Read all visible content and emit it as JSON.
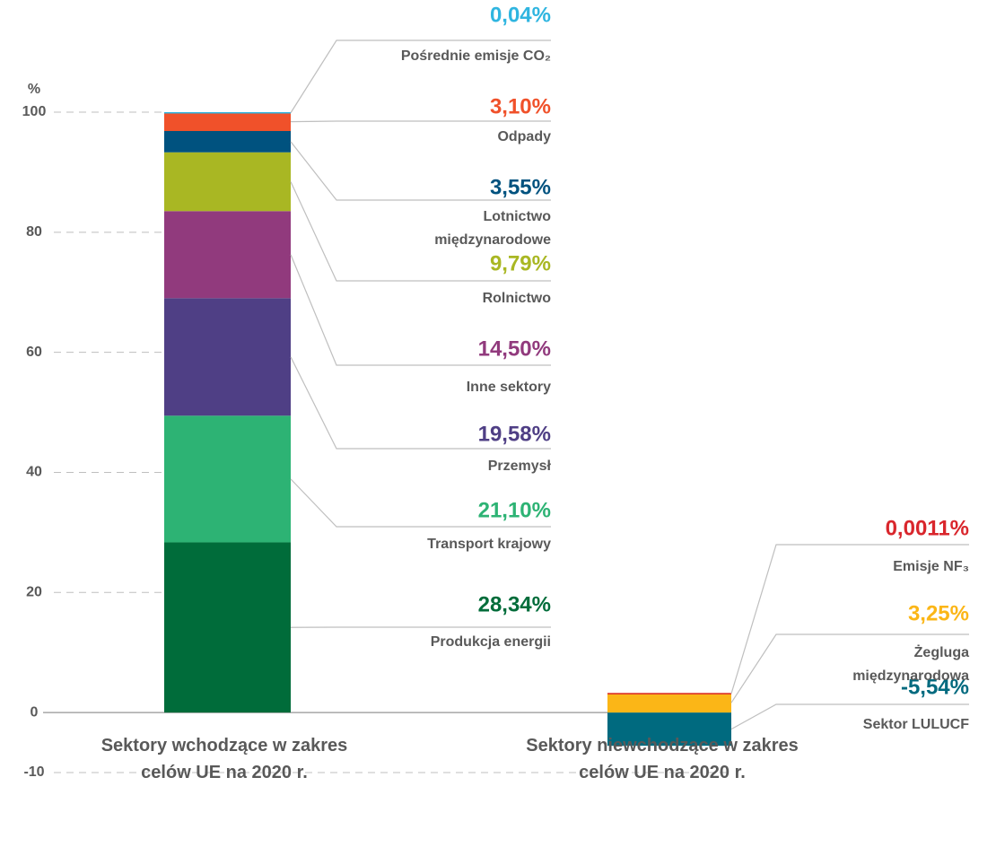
{
  "chart_data": {
    "type": "bar",
    "stacked": true,
    "y_label": "%",
    "categories": [
      "Sektory wchodzące w zakres celów UE na 2020 r.",
      "Sektory niewchodzące w zakres celów UE na 2020 r."
    ],
    "ylim": [
      -10,
      100
    ],
    "yticks": [
      -10,
      0,
      20,
      40,
      60,
      80,
      100
    ],
    "series": [
      {
        "name": "Produkcja energii",
        "color": "#006c3a",
        "values": [
          28.34,
          null
        ],
        "value_labels": [
          "28,34%",
          null
        ]
      },
      {
        "name": "Transport krajowy",
        "color": "#2db374",
        "values": [
          21.1,
          null
        ],
        "value_labels": [
          "21,10%",
          null
        ]
      },
      {
        "name": "Przemysł",
        "color": "#4f3f85",
        "values": [
          19.58,
          null
        ],
        "value_labels": [
          "19,58%",
          null
        ]
      },
      {
        "name": "Inne sektory",
        "color": "#913a7d",
        "values": [
          14.5,
          null
        ],
        "value_labels": [
          "14,50%",
          null
        ]
      },
      {
        "name": "Rolnictwo",
        "color": "#a9b723",
        "values": [
          9.79,
          null
        ],
        "value_labels": [
          "9,79%",
          null
        ]
      },
      {
        "name": "Lotnictwo międzynarodowe",
        "color": "#00527f",
        "values": [
          3.55,
          null
        ],
        "value_labels": [
          "3,55%",
          null
        ]
      },
      {
        "name": "Odpady",
        "color": "#f0512a",
        "values": [
          3.1,
          null
        ],
        "value_labels": [
          "3,10%",
          null
        ]
      },
      {
        "name": "Pośrednie emisje CO₂",
        "color": "#2fb5e0",
        "values": [
          0.04,
          null
        ],
        "value_labels": [
          "0,04%",
          null
        ]
      },
      {
        "name": "Sektor LULUCF",
        "color": "#006a7f",
        "values": [
          null,
          -5.54
        ],
        "value_labels": [
          null,
          "-5,54%"
        ]
      },
      {
        "name": "Żegluga międzynarodowa",
        "color": "#fbb617",
        "values": [
          null,
          3.25
        ],
        "value_labels": [
          null,
          "3,25%"
        ]
      },
      {
        "name": "Emisje NF₃",
        "color": "#d9262c",
        "values": [
          null,
          0.0011
        ],
        "value_labels": [
          null,
          "0,0011%"
        ]
      }
    ]
  }
}
